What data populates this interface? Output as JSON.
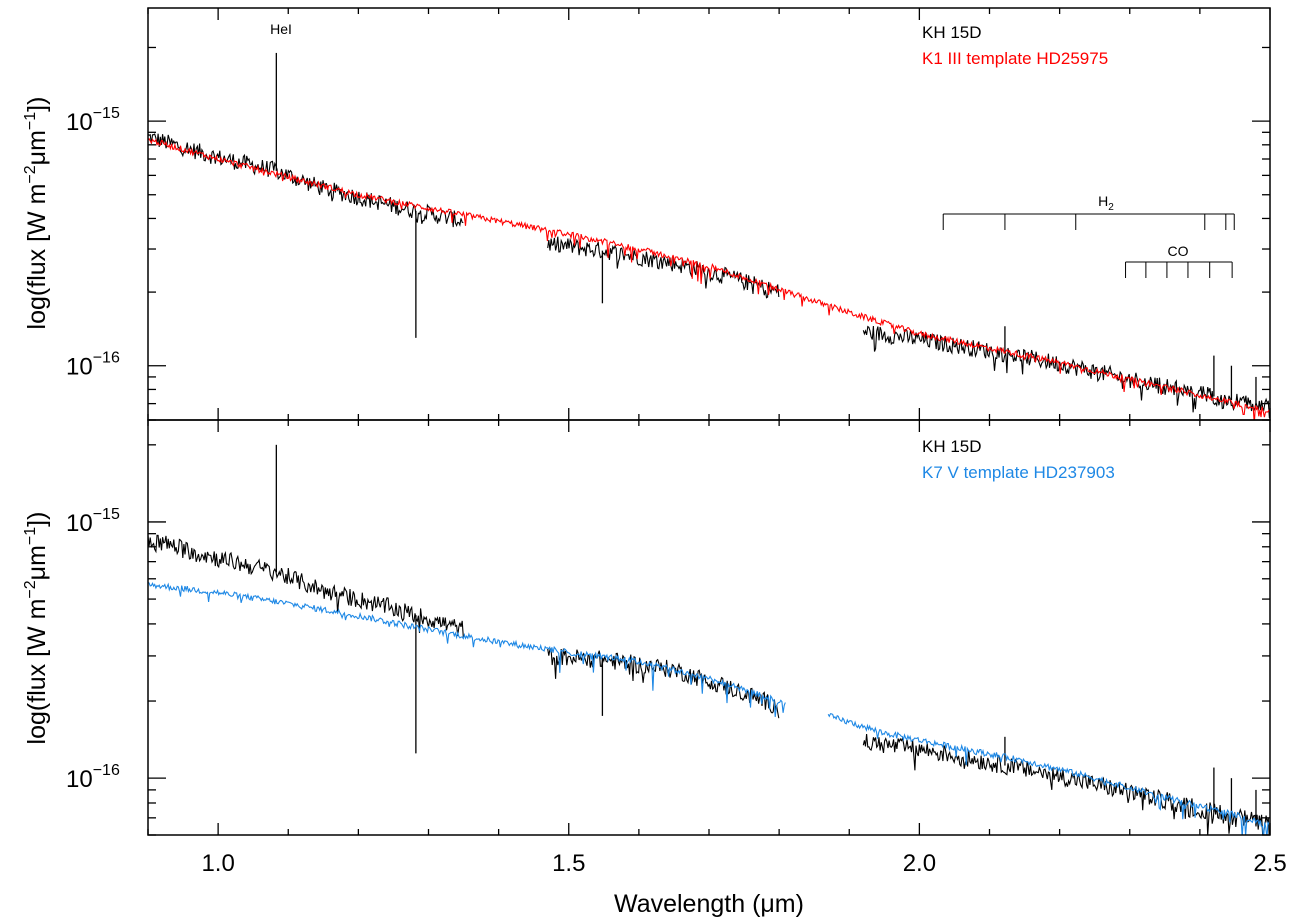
{
  "figure": {
    "xlabel": "Wavelength (μm)",
    "ylabel_prefix": "log(flux [W m",
    "ylabel_exp1": "−2",
    "ylabel_mid": "μm",
    "ylabel_exp2": "−1",
    "ylabel_suffix": "])"
  },
  "chart_data": [
    {
      "type": "line",
      "panel": "top",
      "xlim": [
        0.9,
        2.5
      ],
      "ylim": [
        6e-17,
        2.9e-15
      ],
      "yscale": "log",
      "x_ticks": [
        {
          "value": 1.0,
          "label": "1.0"
        },
        {
          "value": 1.5,
          "label": "1.5"
        },
        {
          "value": 2.0,
          "label": "2.0"
        },
        {
          "value": 2.5,
          "label": "2.5"
        }
      ],
      "y_ticks": [
        {
          "value": 1e-15,
          "mant": "10",
          "exp": "−15"
        },
        {
          "value": 1e-16,
          "mant": "10",
          "exp": "−16"
        }
      ],
      "legend": [
        "KH 15D",
        "K1 III template HD25975"
      ],
      "series": [
        {
          "name": "KH 15D",
          "color": "#000000",
          "points": [
            [
              0.9,
              8.6e-16
            ],
            [
              1.0,
              7.1e-16
            ],
            [
              1.08,
              6.3e-16
            ],
            [
              1.15,
              5.3e-16
            ],
            [
              1.25,
              4.5e-16
            ],
            [
              1.35,
              3.9e-16
            ],
            null,
            [
              1.47,
              3.15e-16
            ],
            [
              1.55,
              2.95e-16
            ],
            [
              1.65,
              2.62e-16
            ],
            [
              1.73,
              2.3e-16
            ],
            [
              1.8,
              2e-16
            ],
            null,
            [
              1.92,
              1.38e-16
            ],
            [
              2.0,
              1.28e-16
            ],
            [
              2.1,
              1.15e-16
            ],
            [
              2.2,
              1.02e-16
            ],
            [
              2.3,
              8.8e-17
            ],
            [
              2.4,
              7.7e-17
            ],
            [
              2.5,
              6.7e-17
            ]
          ],
          "spikes": [
            [
              1.083,
              1.9e-15
            ],
            [
              1.282,
              1.3e-16
            ],
            [
              1.548,
              1.8e-16
            ],
            [
              2.122,
              1.45e-16
            ],
            [
              2.42,
              1.1e-16
            ],
            [
              2.445,
              1e-16
            ],
            [
              2.48,
              9e-17
            ]
          ]
        },
        {
          "name": "K1 III template HD25975",
          "color": "#ff0000",
          "points": [
            [
              0.9,
              8.4e-16
            ],
            [
              1.0,
              7e-16
            ],
            [
              1.1,
              5.9e-16
            ],
            [
              1.2,
              5e-16
            ],
            [
              1.3,
              4.4e-16
            ],
            [
              1.4,
              3.9e-16
            ],
            [
              1.5,
              3.45e-16
            ],
            [
              1.6,
              3e-16
            ],
            [
              1.7,
              2.55e-16
            ],
            [
              1.8,
              2.05e-16
            ],
            [
              1.9,
              1.65e-16
            ],
            [
              2.0,
              1.35e-16
            ],
            [
              2.1,
              1.18e-16
            ],
            [
              2.2,
              1.03e-16
            ],
            [
              2.3,
              8.8e-17
            ],
            [
              2.4,
              7.6e-17
            ],
            [
              2.5,
              6.5e-17
            ]
          ],
          "spikes": []
        }
      ],
      "annotations": {
        "hei": {
          "label": "HeI",
          "x": 1.083
        },
        "h2": {
          "label_main": "H",
          "label_sub": "2",
          "ticks": [
            2.034,
            2.122,
            2.223,
            2.407,
            2.437,
            2.449
          ]
        },
        "co": {
          "label": "CO",
          "ticks": [
            2.294,
            2.323,
            2.353,
            2.383,
            2.414,
            2.446
          ]
        }
      }
    },
    {
      "type": "line",
      "panel": "bottom",
      "xlim": [
        0.9,
        2.5
      ],
      "ylim": [
        6e-17,
        2.5e-15
      ],
      "yscale": "log",
      "x_ticks": [
        {
          "value": 1.0,
          "label": "1.0"
        },
        {
          "value": 1.5,
          "label": "1.5"
        },
        {
          "value": 2.0,
          "label": "2.0"
        },
        {
          "value": 2.5,
          "label": "2.5"
        }
      ],
      "y_ticks": [
        {
          "value": 1e-15,
          "mant": "10",
          "exp": "−15"
        },
        {
          "value": 1e-16,
          "mant": "10",
          "exp": "−16"
        }
      ],
      "legend": [
        "KH 15D",
        "K7 V template HD237903"
      ],
      "series": [
        {
          "name": "KH 15D",
          "color": "#000000",
          "points": [
            [
              0.9,
              8.6e-16
            ],
            [
              1.0,
              7.2e-16
            ],
            [
              1.08,
              6.4e-16
            ],
            [
              1.15,
              5.4e-16
            ],
            [
              1.25,
              4.6e-16
            ],
            [
              1.35,
              3.8e-16
            ],
            null,
            [
              1.47,
              3e-16
            ],
            [
              1.55,
              2.9e-16
            ],
            [
              1.65,
              2.65e-16
            ],
            [
              1.73,
              2.25e-16
            ],
            [
              1.8,
              1.9e-16
            ],
            null,
            [
              1.92,
              1.38e-16
            ],
            [
              2.0,
              1.3e-16
            ],
            [
              2.1,
              1.15e-16
            ],
            [
              2.2,
              1.02e-16
            ],
            [
              2.3,
              8.8e-17
            ],
            [
              2.4,
              7.6e-17
            ],
            [
              2.5,
              6.6e-17
            ]
          ],
          "spikes": [
            [
              1.083,
              2e-15
            ],
            [
              1.282,
              1.25e-16
            ],
            [
              1.548,
              1.75e-16
            ],
            [
              2.122,
              1.45e-16
            ],
            [
              2.42,
              1.1e-16
            ],
            [
              2.445,
              1e-16
            ],
            [
              2.48,
              9e-17
            ]
          ]
        },
        {
          "name": "K7 V template HD237903",
          "color": "#1e88e5",
          "points": [
            [
              0.9,
              5.7e-16
            ],
            [
              1.0,
              5.3e-16
            ],
            [
              1.1,
              4.8e-16
            ],
            [
              1.2,
              4.3e-16
            ],
            [
              1.3,
              3.8e-16
            ],
            [
              1.4,
              3.4e-16
            ],
            [
              1.5,
              3.1e-16
            ],
            [
              1.6,
              2.85e-16
            ],
            [
              1.7,
              2.45e-16
            ],
            [
              1.81,
              1.95e-16
            ],
            null,
            [
              1.87,
              1.75e-16
            ],
            [
              1.95,
              1.5e-16
            ],
            [
              2.05,
              1.32e-16
            ],
            [
              2.15,
              1.17e-16
            ],
            [
              2.25,
              1e-16
            ],
            [
              2.35,
              8.4e-17
            ],
            [
              2.45,
              7.2e-17
            ],
            [
              2.5,
              6.5e-17
            ]
          ],
          "spikes": []
        }
      ]
    }
  ]
}
